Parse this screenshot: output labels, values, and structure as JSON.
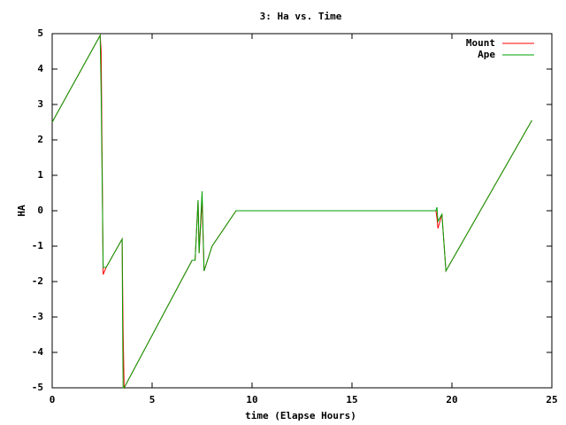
{
  "chart_data": {
    "type": "line",
    "title": "3: Ha vs. Time",
    "x_label": "time (Elapse Hours)",
    "y_label": "HA",
    "x": [
      0,
      2.4,
      2.45,
      2.55,
      2.7,
      3.5,
      3.52,
      3.55,
      3.6,
      7.0,
      7.15,
      7.3,
      7.35,
      7.5,
      7.6,
      8.0,
      9.2,
      19.2,
      19.25,
      19.3,
      19.5,
      19.7,
      24
    ],
    "series": [
      {
        "name": "Mount",
        "color": "#ff0000",
        "values": [
          2.5,
          4.95,
          4.5,
          -1.8,
          -1.6,
          -0.8,
          -1.9,
          -3.4,
          -5,
          -1.4,
          -1.4,
          0.3,
          -1.2,
          0.3,
          -1.7,
          -1.0,
          0,
          0,
          -0.2,
          -0.5,
          -0.1,
          -1.7,
          2.55
        ]
      },
      {
        "name": "Ape",
        "color": "#00a000",
        "values": [
          2.5,
          4.95,
          3.3,
          -1.6,
          -1.6,
          -0.8,
          -2.9,
          -5,
          -5,
          -1.4,
          -1.4,
          0.3,
          -1.2,
          0.55,
          -1.7,
          -1.0,
          0,
          0,
          0.1,
          -0.3,
          -0.1,
          -1.7,
          2.55
        ]
      }
    ],
    "xlim": [
      0,
      25
    ],
    "xticks": [
      0,
      5,
      10,
      15,
      20,
      25
    ],
    "ylim": [
      -5,
      5
    ],
    "yticks": [
      -5,
      -4,
      -3,
      -2,
      -1,
      0,
      1,
      2,
      3,
      4,
      5
    ],
    "legend": "top-right"
  }
}
